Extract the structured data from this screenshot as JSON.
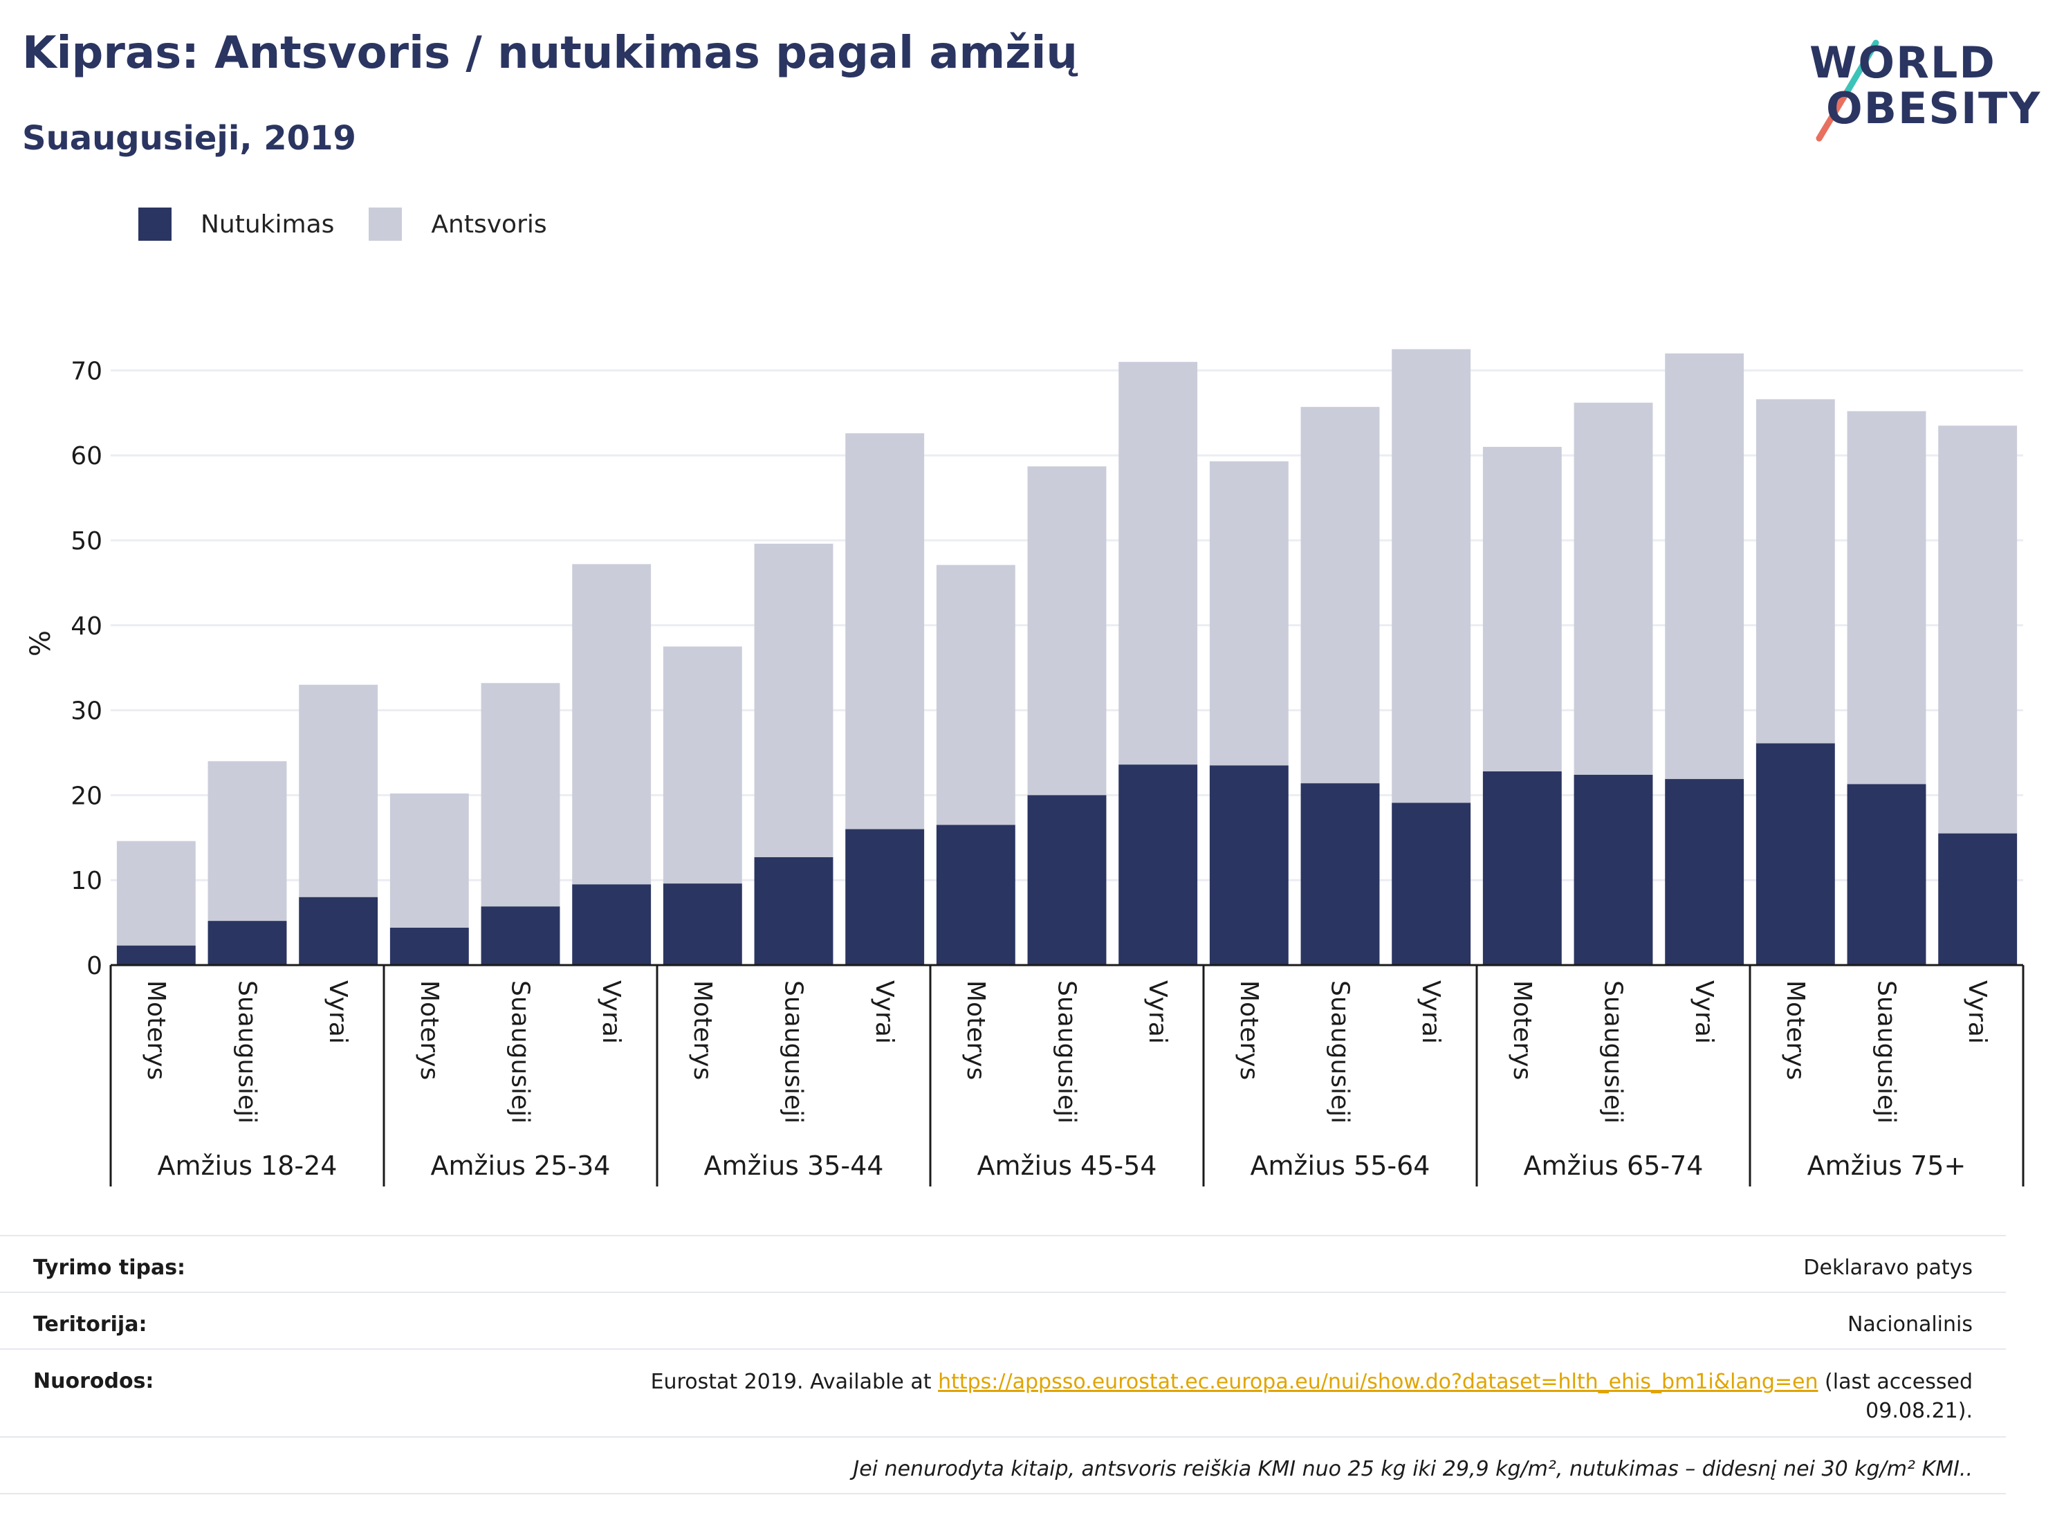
{
  "title": "Kipras: Antsvoris / nutukimas pagal amžių",
  "subtitle": "Suaugusieji, 2019",
  "logo": {
    "line1": "WORLD",
    "line2": "OBESITY"
  },
  "legend": [
    {
      "label": "Nutukimas",
      "color": "#2b3561"
    },
    {
      "label": "Antsvoris",
      "color": "#cacdd9"
    }
  ],
  "chart_data": {
    "type": "bar",
    "stacked": true,
    "ylabel": "%",
    "ylim": [
      0,
      75
    ],
    "yticks": [
      0,
      10,
      20,
      30,
      40,
      50,
      60,
      70
    ],
    "grid": true,
    "legend_position": "top-left",
    "groups": [
      "Amžius 18-24",
      "Amžius 25-34",
      "Amžius 35-44",
      "Amžius 45-54",
      "Amžius 55-64",
      "Amžius 65-74",
      "Amžius 75+"
    ],
    "subcategories": [
      "Moterys",
      "Suaugusieji",
      "Vyrai"
    ],
    "series": [
      {
        "name": "Nutukimas",
        "color": "#2b3561",
        "values": [
          2.3,
          5.2,
          8.0,
          4.4,
          6.9,
          9.5,
          9.6,
          12.7,
          16.0,
          16.5,
          20.0,
          23.6,
          23.5,
          21.4,
          19.1,
          22.8,
          22.4,
          21.9,
          26.1,
          21.3,
          15.5
        ]
      },
      {
        "name": "Antsvoris",
        "color": "#cacdd9",
        "values": [
          12.3,
          18.8,
          25.0,
          15.8,
          26.3,
          37.7,
          27.9,
          36.9,
          46.6,
          30.6,
          38.7,
          47.4,
          35.8,
          44.3,
          53.4,
          38.2,
          43.8,
          50.1,
          40.5,
          43.9,
          48.0
        ]
      }
    ],
    "totals": [
      14.6,
      24.0,
      33.0,
      20.2,
      33.2,
      47.2,
      37.5,
      49.6,
      62.6,
      47.1,
      58.7,
      71.0,
      59.3,
      65.7,
      72.5,
      61.0,
      66.2,
      72.0,
      66.6,
      65.2,
      63.5
    ]
  },
  "info": {
    "survey_label": "Tyrimo tipas:",
    "survey_value": "Deklaravo patys",
    "territory_label": "Teritorija:",
    "territory_value": "Nacionalinis",
    "refs_label": "Nuorodos:",
    "refs_prefix": "Eurostat 2019. Available at ",
    "refs_link": "https://appsso.eurostat.ec.europa.eu/nui/show.do?dataset=hlth_ehis_bm1i&lang=en",
    "refs_suffix": " (last accessed",
    "refs_date": "09.08.21).",
    "note": "Jei nenurodyta kitaip, antsvoris reiškia KMI nuo 25 kg iki 29,9 kg/m², nutukimas – didesnį nei 30 kg/m² KMI.."
  }
}
